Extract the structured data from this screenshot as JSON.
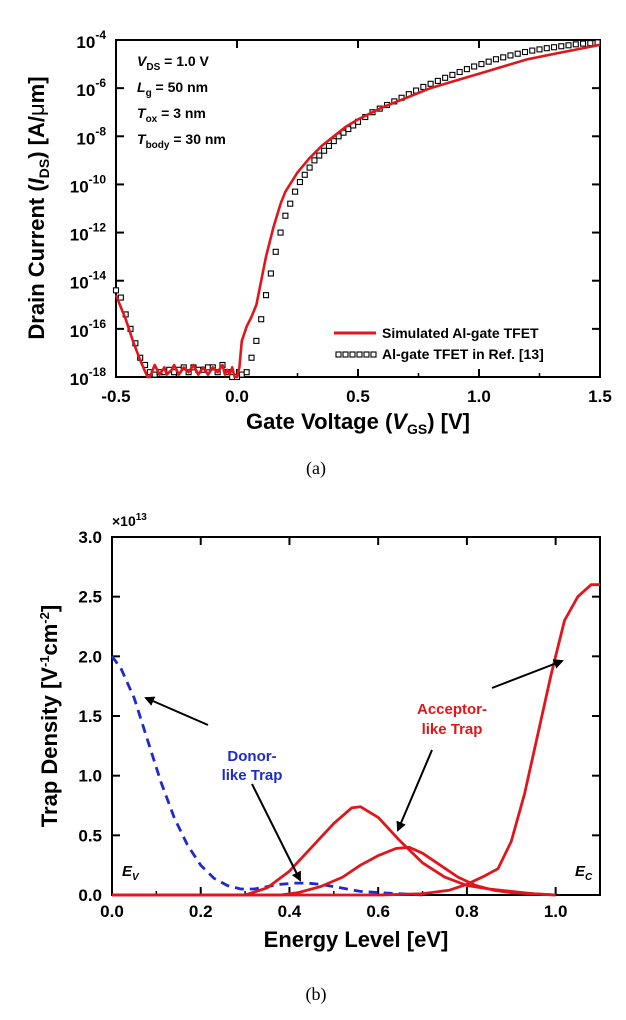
{
  "chart_data": [
    {
      "type": "line",
      "caption": "(a)",
      "ylog": true,
      "xlim": [
        -0.5,
        1.5
      ],
      "ylim_exp": [
        -18,
        -4
      ],
      "x_ticks": [
        "-0.5",
        "0.0",
        "0.5",
        "1.0",
        "1.5"
      ],
      "x_tick_values": [
        -0.5,
        0.0,
        0.5,
        1.0,
        1.5
      ],
      "y_tick_base": "10",
      "y_tick_exponents": [
        "-4",
        "-6",
        "-8",
        "-10",
        "-12",
        "-14",
        "-16",
        "-18"
      ],
      "xlabel": {
        "pre": "Gate Voltage (",
        "var": "V",
        "sub": "GS",
        "post": ") [V]"
      },
      "ylabel": {
        "pre": "Drain Current (",
        "var": "I",
        "sub": "DS",
        "post": ") [A/",
        "mu": "μ",
        "unit2": "m]"
      },
      "annotations": [
        {
          "var": "V",
          "sub": "DS",
          "rest": " = 1.0 V"
        },
        {
          "var": "L",
          "sub": "g",
          "rest": " = 50 nm"
        },
        {
          "var": "T",
          "sub": "ox",
          "rest": " = 3 nm"
        },
        {
          "var": "T",
          "sub": "body",
          "rest": " = 30 nm"
        }
      ],
      "series": [
        {
          "name": "Simulated Al-gate TFET",
          "style": "line",
          "color": "#e0161c",
          "x": [
            -0.5,
            -0.46,
            -0.43,
            -0.4,
            -0.37,
            -0.36,
            -0.34,
            -0.32,
            -0.3,
            -0.29,
            -0.27,
            -0.26,
            -0.24,
            -0.22,
            -0.2,
            -0.18,
            -0.16,
            -0.14,
            -0.12,
            -0.1,
            -0.08,
            -0.06,
            -0.05,
            -0.04,
            -0.03,
            -0.02,
            -0.01,
            0.0,
            0.01,
            0.02,
            0.04,
            0.06,
            0.08,
            0.1,
            0.12,
            0.15,
            0.18,
            0.2,
            0.25,
            0.3,
            0.35,
            0.4,
            0.45,
            0.5,
            0.6,
            0.7,
            0.8,
            0.9,
            1.0,
            1.1,
            1.2,
            1.3,
            1.4,
            1.5
          ],
          "y_exp": [
            -14.6,
            -15.6,
            -16.5,
            -17.3,
            -18.0,
            -18.0,
            -17.5,
            -17.9,
            -17.6,
            -17.9,
            -17.7,
            -17.5,
            -17.9,
            -17.6,
            -17.8,
            -17.5,
            -17.9,
            -17.6,
            -17.9,
            -17.6,
            -17.8,
            -17.5,
            -17.9,
            -17.7,
            -17.9,
            -17.6,
            -18.0,
            -18.0,
            -17.6,
            -16.5,
            -15.9,
            -15.5,
            -15.0,
            -14.0,
            -13.0,
            -11.8,
            -10.8,
            -10.3,
            -9.5,
            -8.9,
            -8.4,
            -8.0,
            -7.6,
            -7.3,
            -6.8,
            -6.4,
            -6.0,
            -5.7,
            -5.4,
            -5.1,
            -4.8,
            -4.6,
            -4.4,
            -4.2
          ]
        },
        {
          "name": "Al-gate TFET in Ref. [13]",
          "style": "open-square",
          "color": "#000000",
          "x": [
            -0.5,
            -0.48,
            -0.46,
            -0.44,
            -0.42,
            -0.4,
            -0.38,
            -0.36,
            -0.34,
            -0.32,
            -0.3,
            -0.28,
            -0.26,
            -0.24,
            -0.22,
            -0.2,
            -0.18,
            -0.16,
            -0.14,
            -0.12,
            -0.1,
            -0.08,
            -0.06,
            -0.04,
            -0.02,
            0.0,
            0.02,
            0.04,
            0.06,
            0.08,
            0.1,
            0.12,
            0.14,
            0.16,
            0.18,
            0.2,
            0.22,
            0.24,
            0.26,
            0.28,
            0.3,
            0.32,
            0.34,
            0.36,
            0.38,
            0.4,
            0.42,
            0.44,
            0.46,
            0.48,
            0.5,
            0.53,
            0.56,
            0.59,
            0.62,
            0.65,
            0.68,
            0.71,
            0.74,
            0.77,
            0.8,
            0.83,
            0.86,
            0.89,
            0.92,
            0.95,
            0.98,
            1.01,
            1.04,
            1.07,
            1.1,
            1.13,
            1.16,
            1.19,
            1.22,
            1.25,
            1.28,
            1.31,
            1.34,
            1.37,
            1.4,
            1.43,
            1.46,
            1.49
          ],
          "y_exp": [
            -14.4,
            -14.7,
            -15.4,
            -16.0,
            -16.6,
            -17.2,
            -17.5,
            -17.8,
            -17.9,
            -17.8,
            -17.8,
            -17.7,
            -17.8,
            -17.7,
            -17.6,
            -17.8,
            -17.6,
            -17.7,
            -17.7,
            -17.6,
            -17.6,
            -17.8,
            -17.5,
            -17.8,
            -18.0,
            -18.0,
            -17.9,
            -17.8,
            -17.2,
            -16.5,
            -15.6,
            -14.6,
            -13.7,
            -12.8,
            -12.0,
            -11.3,
            -10.8,
            -10.3,
            -9.9,
            -9.6,
            -9.3,
            -9.0,
            -8.8,
            -8.6,
            -8.4,
            -8.2,
            -8.0,
            -7.85,
            -7.7,
            -7.55,
            -7.4,
            -7.2,
            -7.0,
            -6.85,
            -6.7,
            -6.55,
            -6.4,
            -6.25,
            -6.1,
            -5.95,
            -5.82,
            -5.7,
            -5.57,
            -5.45,
            -5.33,
            -5.21,
            -5.1,
            -5.0,
            -4.9,
            -4.8,
            -4.72,
            -4.64,
            -4.57,
            -4.5,
            -4.44,
            -4.39,
            -4.34,
            -4.3,
            -4.26,
            -4.22,
            -4.18,
            -4.15,
            -4.13,
            -4.1
          ]
        }
      ],
      "legend_position": "bottom-right"
    },
    {
      "type": "line",
      "caption": "(b)",
      "xlim": [
        0.0,
        1.1
      ],
      "ylim": [
        0.0,
        3.0
      ],
      "multiplier": "×10",
      "multiplier_exp": "13",
      "x_ticks": [
        "0.0",
        "0.2",
        "0.4",
        "0.6",
        "0.8",
        "1.0"
      ],
      "x_tick_values": [
        0.0,
        0.2,
        0.4,
        0.6,
        0.8,
        1.0
      ],
      "y_ticks": [
        "0.0",
        "0.5",
        "1.0",
        "1.5",
        "2.0",
        "2.5",
        "3.0"
      ],
      "y_tick_values": [
        0.0,
        0.5,
        1.0,
        1.5,
        2.0,
        2.5,
        3.0
      ],
      "xlabel": "Energy Level [eV]",
      "ylabel": {
        "pre": "Trap Density [V",
        "sup1": "-1",
        "mid": "cm",
        "sup2": "-2",
        "post": "]"
      },
      "labels": {
        "donor_line1": "Donor-",
        "donor_line2": "like Trap",
        "acceptor_line1": "Acceptor-",
        "acceptor_line2": "like Trap",
        "ev_var": "E",
        "ev_sub": "V",
        "ec_var": "E",
        "ec_sub": "C"
      },
      "donor_color": "#1c2bd0",
      "acceptor_color": "#e0161c",
      "series": [
        {
          "group": "donor",
          "style": "dashed",
          "x": [
            0.0,
            0.02,
            0.05,
            0.08,
            0.11,
            0.14,
            0.17,
            0.2,
            0.23,
            0.26,
            0.29,
            0.32,
            0.35,
            0.38,
            0.41,
            0.44,
            0.47,
            0.5,
            0.53,
            0.56,
            0.6,
            0.65,
            0.7
          ],
          "y": [
            2.0,
            1.9,
            1.65,
            1.3,
            0.95,
            0.65,
            0.42,
            0.25,
            0.14,
            0.08,
            0.05,
            0.05,
            0.07,
            0.09,
            0.1,
            0.1,
            0.09,
            0.07,
            0.05,
            0.03,
            0.02,
            0.01,
            0.0
          ]
        },
        {
          "group": "acceptor",
          "style": "solid",
          "x": [
            0.0,
            0.3,
            0.35,
            0.4,
            0.45,
            0.5,
            0.54,
            0.56,
            0.6,
            0.65,
            0.7,
            0.75,
            0.8,
            0.85,
            0.9,
            0.95,
            1.0
          ],
          "y": [
            0.0,
            0.0,
            0.06,
            0.2,
            0.4,
            0.6,
            0.73,
            0.74,
            0.65,
            0.45,
            0.27,
            0.15,
            0.08,
            0.05,
            0.03,
            0.01,
            0.0
          ]
        },
        {
          "group": "acceptor",
          "style": "solid",
          "x": [
            0.0,
            0.38,
            0.42,
            0.47,
            0.52,
            0.56,
            0.6,
            0.64,
            0.67,
            0.7,
            0.74,
            0.78,
            0.82,
            0.86,
            0.9,
            0.95,
            1.0
          ],
          "y": [
            0.0,
            0.0,
            0.02,
            0.07,
            0.15,
            0.25,
            0.33,
            0.39,
            0.4,
            0.35,
            0.25,
            0.15,
            0.08,
            0.04,
            0.02,
            0.01,
            0.0
          ]
        },
        {
          "group": "acceptor",
          "style": "solid",
          "x": [
            0.0,
            0.6,
            0.7,
            0.76,
            0.8,
            0.84,
            0.87,
            0.9,
            0.93,
            0.96,
            0.99,
            1.02,
            1.05,
            1.08,
            1.1
          ],
          "y": [
            0.0,
            0.0,
            0.01,
            0.04,
            0.09,
            0.16,
            0.22,
            0.45,
            0.85,
            1.35,
            1.85,
            2.3,
            2.5,
            2.6,
            2.6
          ]
        }
      ]
    }
  ]
}
